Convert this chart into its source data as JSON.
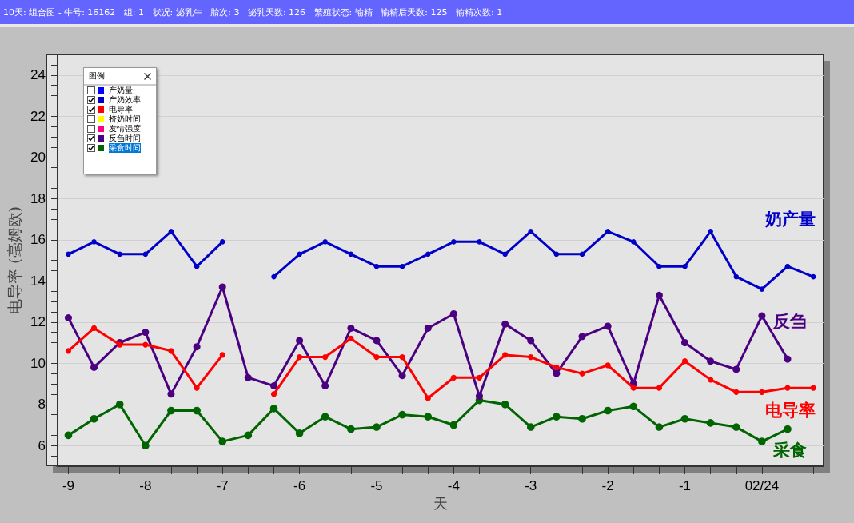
{
  "chart_data": {
    "type": "line",
    "title": "10天: 组合图 - 牛号: 16162   组: 1   状况: 泌乳牛   胎次: 3   泌乳天数: 126   繁殖状态: 输精   输精后天数: 125   输精次数: 1",
    "xlabel": "天",
    "ylabel": "电导率 (毫姆欧)",
    "legend_title": "图例",
    "legend": "top left",
    "marker": "circle",
    "line_style": "solid",
    "grid": "y",
    "x": [
      -9,
      -8.667,
      -8.333,
      -8,
      -7.667,
      -7.333,
      -7,
      -6.667,
      -6.333,
      -6,
      -5.667,
      -5.333,
      -5,
      -4.667,
      -4.333,
      -4,
      -3.667,
      -3.333,
      -3,
      -2.667,
      -2.333,
      -2,
      -1.667,
      -1.333,
      -1,
      -0.667,
      -0.333,
      0,
      0.333,
      0.667
    ],
    "series": [
      {
        "name": "产奶量",
        "color": "#0000ff",
        "values": [
          null,
          null,
          null,
          null,
          null,
          null,
          null,
          null,
          null,
          null,
          null,
          null,
          null,
          null,
          null,
          null,
          null,
          null,
          null,
          null,
          null,
          null,
          null,
          null,
          null,
          null,
          null,
          null,
          null,
          null
        ]
      },
      {
        "name": "产奶效率",
        "color": "#0000c8",
        "values": [
          15.3,
          15.9,
          15.3,
          15.3,
          16.4,
          14.7,
          15.9,
          null,
          14.2,
          15.3,
          15.9,
          15.3,
          14.7,
          14.7,
          15.3,
          15.9,
          15.9,
          15.3,
          16.4,
          15.3,
          15.3,
          16.4,
          15.9,
          14.7,
          14.7,
          16.4,
          14.2,
          13.6,
          14.7,
          14.2
        ]
      },
      {
        "name": "电导率",
        "color": "#ff0000",
        "values": [
          10.6,
          11.7,
          10.9,
          10.9,
          10.6,
          8.8,
          10.4,
          null,
          8.5,
          10.3,
          10.3,
          11.2,
          10.3,
          10.3,
          8.3,
          9.3,
          9.3,
          10.4,
          10.3,
          9.8,
          9.5,
          9.9,
          8.8,
          8.8,
          10.1,
          9.2,
          8.6,
          8.6,
          8.8,
          8.8
        ]
      },
      {
        "name": "挤奶时间",
        "color": "#ffff00",
        "values": [
          null,
          null,
          null,
          null,
          null,
          null,
          null,
          null,
          null,
          null,
          null,
          null,
          null,
          null,
          null,
          null,
          null,
          null,
          null,
          null,
          null,
          null,
          null,
          null,
          null,
          null,
          null,
          null,
          null,
          null
        ]
      },
      {
        "name": "发情强度",
        "color": "#ff0080",
        "values": [
          null,
          null,
          null,
          null,
          null,
          null,
          null,
          null,
          null,
          null,
          null,
          null,
          null,
          null,
          null,
          null,
          null,
          null,
          null,
          null,
          null,
          null,
          null,
          null,
          null,
          null,
          null,
          null,
          null,
          null
        ]
      },
      {
        "name": "反刍时间",
        "color": "#4b0082",
        "values": [
          12.2,
          9.8,
          11.0,
          11.5,
          8.5,
          10.8,
          13.7,
          9.3,
          8.9,
          11.1,
          8.9,
          11.7,
          11.1,
          9.4,
          11.7,
          12.4,
          8.4,
          11.9,
          11.1,
          9.5,
          11.3,
          11.8,
          9.0,
          13.3,
          11.0,
          10.1,
          9.7,
          12.3,
          10.2,
          null
        ]
      },
      {
        "name": "采食时间",
        "color": "#006400",
        "values": [
          6.5,
          7.3,
          8.0,
          6.0,
          7.7,
          7.7,
          6.2,
          6.5,
          7.8,
          6.6,
          7.4,
          6.8,
          6.9,
          7.5,
          7.4,
          7.0,
          8.2,
          8.0,
          6.9,
          7.4,
          7.3,
          7.7,
          7.9,
          6.9,
          7.3,
          7.1,
          6.9,
          6.2,
          6.8,
          null
        ]
      }
    ],
    "annotations": [
      "奶产量",
      "电导率",
      "反刍",
      "采食"
    ],
    "xlim": [
      -9.15,
      0.8
    ],
    "ylim": [
      5,
      25
    ],
    "xticks": [
      -9,
      {
        "value": -8.667,
        "label": null
      },
      {
        "value": -8.333,
        "label": null
      },
      -8,
      {
        "value": -7.667,
        "label": null
      },
      {
        "value": -7.333,
        "label": null
      },
      -7,
      {
        "value": -6.667,
        "label": null
      },
      {
        "value": -6.333,
        "label": null
      },
      -6,
      {
        "value": -5.667,
        "label": null
      },
      {
        "value": -5.333,
        "label": null
      },
      -5,
      {
        "value": -4.667,
        "label": null
      },
      {
        "value": -4.333,
        "label": null
      },
      -4,
      {
        "value": -3.667,
        "label": null
      },
      {
        "value": -3.333,
        "label": null
      },
      -3,
      {
        "value": -2.667,
        "label": null
      },
      {
        "value": -2.333,
        "label": null
      },
      -2,
      {
        "value": -1.667,
        "label": null
      },
      {
        "value": -1.333,
        "label": null
      },
      -1,
      {
        "value": -0.667,
        "label": null
      },
      {
        "value": -0.333,
        "label": null
      },
      {
        "value": 0,
        "label": "02/24"
      },
      {
        "value": 0.333,
        "label": null
      },
      {
        "value": 0.667,
        "label": null
      }
    ],
    "yticks": [
      {
        "value": 5.5,
        "label": null
      },
      6,
      {
        "value": 6.5,
        "label": null
      },
      {
        "value": 7,
        "label": null
      },
      {
        "value": 7.5,
        "label": null
      },
      8,
      {
        "value": 8.5,
        "label": null
      },
      {
        "value": 9,
        "label": null
      },
      {
        "value": 9.5,
        "label": null
      },
      10,
      {
        "value": 10.5,
        "label": null
      },
      {
        "value": 11,
        "label": null
      },
      {
        "value": 11.5,
        "label": null
      },
      12,
      {
        "value": 12.5,
        "label": null
      },
      {
        "value": 13,
        "label": null
      },
      {
        "value": 13.5,
        "label": null
      },
      14,
      {
        "value": 14.5,
        "label": null
      },
      {
        "value": 15,
        "label": null
      },
      {
        "value": 15.5,
        "label": null
      },
      16,
      {
        "value": 16.5,
        "label": null
      },
      {
        "value": 17,
        "label": null
      },
      {
        "value": 17.5,
        "label": null
      },
      18,
      {
        "value": 18.5,
        "label": null
      },
      {
        "value": 19,
        "label": null
      },
      {
        "value": 19.5,
        "label": null
      },
      20,
      {
        "value": 20.5,
        "label": null
      },
      {
        "value": 21,
        "label": null
      },
      {
        "value": 21.5,
        "label": null
      },
      22,
      {
        "value": 22.5,
        "label": null
      },
      {
        "value": 23,
        "label": null
      },
      {
        "value": 23.5,
        "label": null
      },
      24,
      {
        "value": 24.5,
        "label": null
      }
    ]
  }
}
